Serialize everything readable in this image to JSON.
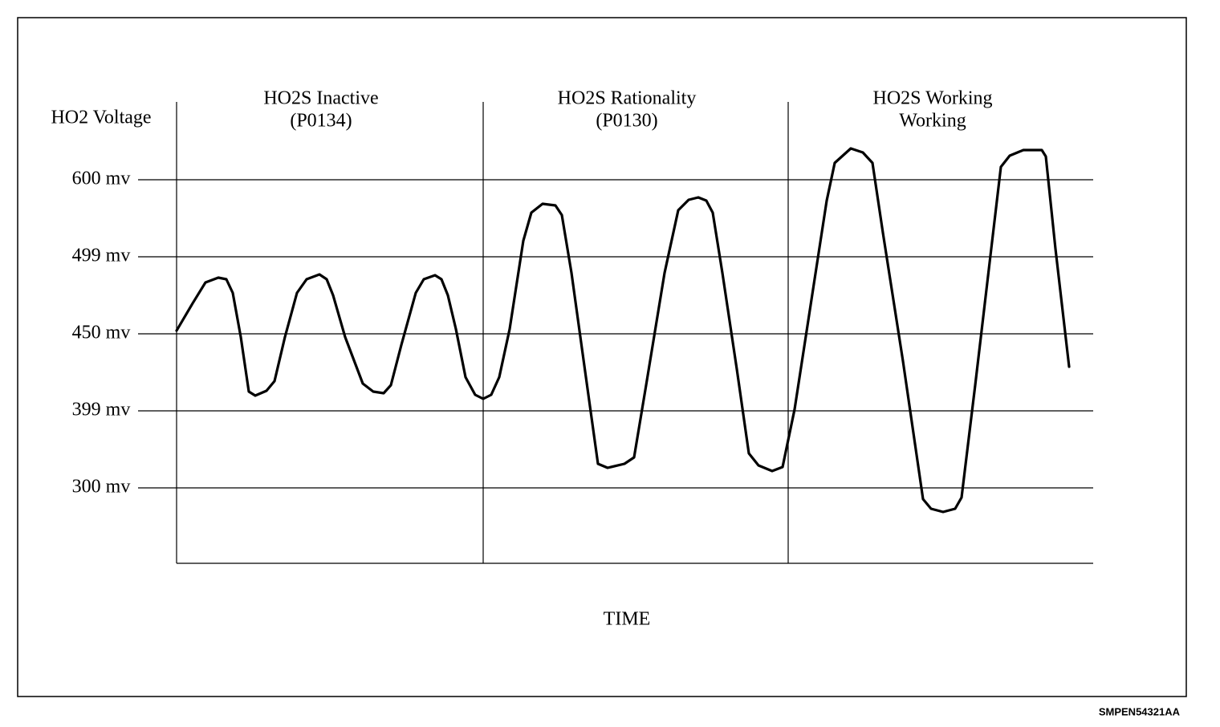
{
  "y_axis": {
    "title": "HO2 Voltage",
    "ticks": [
      "600 mv",
      "499 mv",
      "450 mv",
      "399 mv",
      "300 mv"
    ]
  },
  "sections": [
    {
      "lines": [
        "HO2S Inactive",
        "(P0134)"
      ]
    },
    {
      "lines": [
        "HO2S Rationality",
        "(P0130)"
      ]
    },
    {
      "lines": [
        "HO2S Working",
        "Working"
      ]
    }
  ],
  "x_axis": {
    "title": "TIME"
  },
  "footer": "SMPEN54321AA"
}
